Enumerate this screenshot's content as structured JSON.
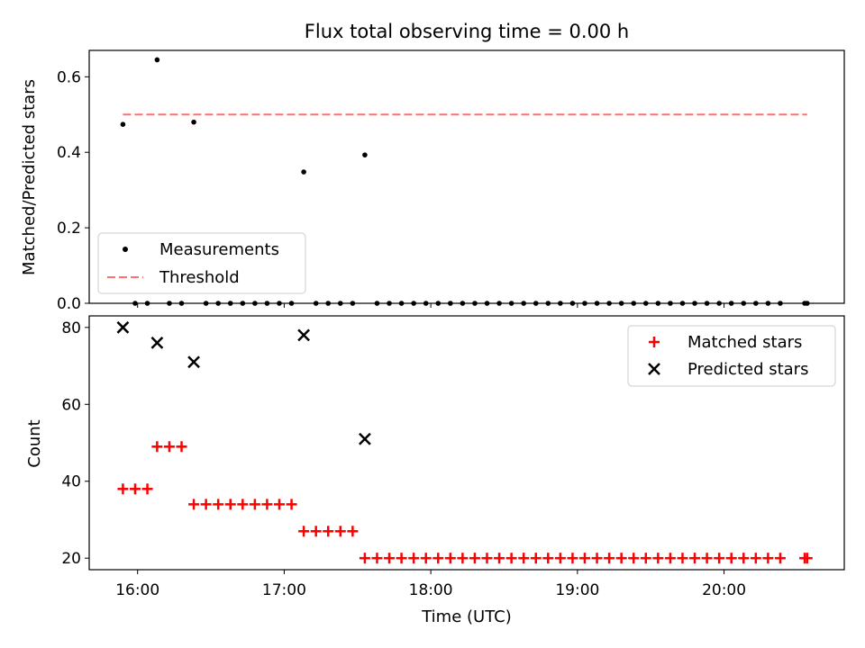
{
  "title": "Flux total observing time = 0.00 h",
  "chart_data": [
    {
      "type": "scatter",
      "ylabel": "Matched/Predicted stars",
      "ylim": [
        0,
        0.67
      ],
      "yticks": [
        0.0,
        0.2,
        0.4,
        0.6
      ],
      "ytick_labels": [
        "0.0",
        "0.2",
        "0.4",
        "0.6"
      ],
      "xlim": [
        15.67,
        20.82
      ],
      "grid": false,
      "legend_position": "lower-left",
      "series": [
        {
          "name": "Measurements",
          "kind": "scatter",
          "color": "#000000",
          "points": [
            [
              "15:54",
              0.474
            ],
            [
              "15:59",
              0.0
            ],
            [
              "16:04",
              0.0
            ],
            [
              "16:08",
              0.645
            ],
            [
              "16:13",
              0.0
            ],
            [
              "16:18",
              0.0
            ],
            [
              "16:23",
              0.48
            ],
            [
              "16:28",
              0.0
            ],
            [
              "16:33",
              0.0
            ],
            [
              "16:38",
              0.0
            ],
            [
              "16:43",
              0.0
            ],
            [
              "16:48",
              0.0
            ],
            [
              "16:53",
              0.0
            ],
            [
              "16:58",
              0.0
            ],
            [
              "17:03",
              0.0
            ],
            [
              "17:08",
              0.348
            ],
            [
              "17:13",
              0.0
            ],
            [
              "17:18",
              0.0
            ],
            [
              "17:23",
              0.0
            ],
            [
              "17:28",
              0.0
            ],
            [
              "17:33",
              0.393
            ],
            [
              "17:38",
              0.0
            ],
            [
              "17:43",
              0.0
            ],
            [
              "17:48",
              0.0
            ],
            [
              "17:53",
              0.0
            ],
            [
              "17:58",
              0.0
            ],
            [
              "18:03",
              0.0
            ],
            [
              "18:08",
              0.0
            ],
            [
              "18:13",
              0.0
            ],
            [
              "18:18",
              0.0
            ],
            [
              "18:23",
              0.0
            ],
            [
              "18:28",
              0.0
            ],
            [
              "18:33",
              0.0
            ],
            [
              "18:38",
              0.0
            ],
            [
              "18:43",
              0.0
            ],
            [
              "18:48",
              0.0
            ],
            [
              "18:53",
              0.0
            ],
            [
              "18:58",
              0.0
            ],
            [
              "19:03",
              0.0
            ],
            [
              "19:08",
              0.0
            ],
            [
              "19:13",
              0.0
            ],
            [
              "19:18",
              0.0
            ],
            [
              "19:23",
              0.0
            ],
            [
              "19:28",
              0.0
            ],
            [
              "19:33",
              0.0
            ],
            [
              "19:38",
              0.0
            ],
            [
              "19:43",
              0.0
            ],
            [
              "19:48",
              0.0
            ],
            [
              "19:53",
              0.0
            ],
            [
              "19:58",
              0.0
            ],
            [
              "20:03",
              0.0
            ],
            [
              "20:08",
              0.0
            ],
            [
              "20:13",
              0.0
            ],
            [
              "20:18",
              0.0
            ],
            [
              "20:23",
              0.0
            ],
            [
              "20:33",
              0.0
            ],
            [
              "20:34",
              0.0
            ]
          ]
        },
        {
          "name": "Threshold",
          "kind": "line",
          "style": "dashed",
          "color": "#ff7070",
          "x": [
            "15:54",
            "20:34"
          ],
          "y": [
            0.5,
            0.5
          ]
        }
      ]
    },
    {
      "type": "scatter",
      "ylabel": "Count",
      "xlabel": "Time (UTC)",
      "ylim": [
        17,
        83
      ],
      "yticks": [
        20,
        40,
        60,
        80
      ],
      "ytick_labels": [
        "20",
        "40",
        "60",
        "80"
      ],
      "xlim": [
        15.67,
        20.82
      ],
      "xticks": [
        "16:00",
        "17:00",
        "18:00",
        "19:00",
        "20:00"
      ],
      "grid": false,
      "legend_position": "upper-right",
      "series": [
        {
          "name": "Matched stars",
          "kind": "scatter",
          "marker": "plus",
          "color": "#ff0000",
          "points": [
            [
              "15:54",
              38
            ],
            [
              "15:59",
              38
            ],
            [
              "16:04",
              38
            ],
            [
              "16:08",
              49
            ],
            [
              "16:13",
              49
            ],
            [
              "16:18",
              49
            ],
            [
              "16:23",
              34
            ],
            [
              "16:28",
              34
            ],
            [
              "16:33",
              34
            ],
            [
              "16:38",
              34
            ],
            [
              "16:43",
              34
            ],
            [
              "16:48",
              34
            ],
            [
              "16:53",
              34
            ],
            [
              "16:58",
              34
            ],
            [
              "17:03",
              34
            ],
            [
              "17:08",
              27
            ],
            [
              "17:13",
              27
            ],
            [
              "17:18",
              27
            ],
            [
              "17:23",
              27
            ],
            [
              "17:28",
              27
            ],
            [
              "17:33",
              20
            ],
            [
              "17:38",
              20
            ],
            [
              "17:43",
              20
            ],
            [
              "17:48",
              20
            ],
            [
              "17:53",
              20
            ],
            [
              "17:58",
              20
            ],
            [
              "18:03",
              20
            ],
            [
              "18:08",
              20
            ],
            [
              "18:13",
              20
            ],
            [
              "18:18",
              20
            ],
            [
              "18:23",
              20
            ],
            [
              "18:28",
              20
            ],
            [
              "18:33",
              20
            ],
            [
              "18:38",
              20
            ],
            [
              "18:43",
              20
            ],
            [
              "18:48",
              20
            ],
            [
              "18:53",
              20
            ],
            [
              "18:58",
              20
            ],
            [
              "19:03",
              20
            ],
            [
              "19:08",
              20
            ],
            [
              "19:13",
              20
            ],
            [
              "19:18",
              20
            ],
            [
              "19:23",
              20
            ],
            [
              "19:28",
              20
            ],
            [
              "19:33",
              20
            ],
            [
              "19:38",
              20
            ],
            [
              "19:43",
              20
            ],
            [
              "19:48",
              20
            ],
            [
              "19:53",
              20
            ],
            [
              "19:58",
              20
            ],
            [
              "20:03",
              20
            ],
            [
              "20:08",
              20
            ],
            [
              "20:13",
              20
            ],
            [
              "20:18",
              20
            ],
            [
              "20:23",
              20
            ],
            [
              "20:33",
              20
            ],
            [
              "20:34",
              20
            ]
          ]
        },
        {
          "name": "Predicted stars",
          "kind": "scatter",
          "marker": "x",
          "color": "#000000",
          "points": [
            [
              "15:54",
              80
            ],
            [
              "16:08",
              76
            ],
            [
              "16:23",
              71
            ],
            [
              "17:08",
              78
            ],
            [
              "17:33",
              51
            ]
          ]
        }
      ]
    }
  ]
}
